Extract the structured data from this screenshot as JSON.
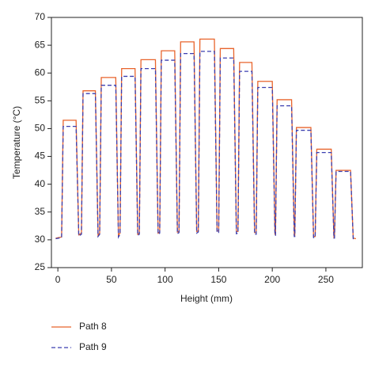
{
  "chart_data": {
    "type": "line",
    "x_label": "Height (mm)",
    "y_label": "Temperature (°C)",
    "x": [
      -2,
      3.5,
      5,
      17,
      19.5,
      22,
      23.5,
      35,
      37.5,
      39,
      40.5,
      54,
      56.5,
      58,
      59.5,
      72,
      74.5,
      76,
      77.5,
      91,
      93.5,
      95,
      96.5,
      109,
      111.5,
      113,
      114.5,
      127,
      129.5,
      131,
      132.5,
      146,
      148.5,
      150,
      151.5,
      164,
      166.5,
      168,
      169.5,
      181,
      183.5,
      185,
      186.5,
      200,
      202.5,
      203,
      204.5,
      218,
      220.5,
      221,
      222.5,
      236,
      238.5,
      240,
      241.5,
      255,
      257.5,
      258,
      259.5,
      273,
      275.5,
      278
    ],
    "series": [
      {
        "name": "Path 8",
        "color": "#e8642c",
        "dash": false,
        "values": [
          30.3,
          30.5,
          51.5,
          51.5,
          30.9,
          31.2,
          56.8,
          56.8,
          30.8,
          31.2,
          59.2,
          59.2,
          30.8,
          31.2,
          60.8,
          60.8,
          31.0,
          31.2,
          62.4,
          62.4,
          31.2,
          31.4,
          64.0,
          64.0,
          31.4,
          31.5,
          65.6,
          65.6,
          31.5,
          31.6,
          66.1,
          66.1,
          31.6,
          31.6,
          64.4,
          64.4,
          31.5,
          31.5,
          61.9,
          61.9,
          31.3,
          31.3,
          58.5,
          58.5,
          31.0,
          31.0,
          55.2,
          55.2,
          30.8,
          30.8,
          50.2,
          50.2,
          30.6,
          30.6,
          46.3,
          46.3,
          30.4,
          30.4,
          42.5,
          42.5,
          30.3,
          30.2
        ]
      },
      {
        "name": "Path 9",
        "color": "#3b3fb0",
        "dash": true,
        "values": [
          30.2,
          30.4,
          50.4,
          50.4,
          30.7,
          31.0,
          56.3,
          56.3,
          30.6,
          31.0,
          57.8,
          57.8,
          30.5,
          31.0,
          59.4,
          59.4,
          30.8,
          31.0,
          60.8,
          60.8,
          31.0,
          31.2,
          62.3,
          62.3,
          31.1,
          31.3,
          63.5,
          63.5,
          31.2,
          31.4,
          63.9,
          63.9,
          31.3,
          31.3,
          62.7,
          62.7,
          31.1,
          31.2,
          60.3,
          60.3,
          31.0,
          31.0,
          57.4,
          57.4,
          30.8,
          30.8,
          54.1,
          54.1,
          30.6,
          30.6,
          49.7,
          49.7,
          30.4,
          30.4,
          45.7,
          45.7,
          30.3,
          30.3,
          42.3,
          42.3,
          30.2,
          30.1
        ]
      }
    ],
    "xlim": [
      -6,
      284
    ],
    "ylim": [
      25,
      70
    ],
    "xticks": [
      0,
      50,
      100,
      150,
      200,
      250
    ],
    "yticks": [
      25,
      30,
      35,
      40,
      45,
      50,
      55,
      60,
      65,
      70
    ]
  }
}
